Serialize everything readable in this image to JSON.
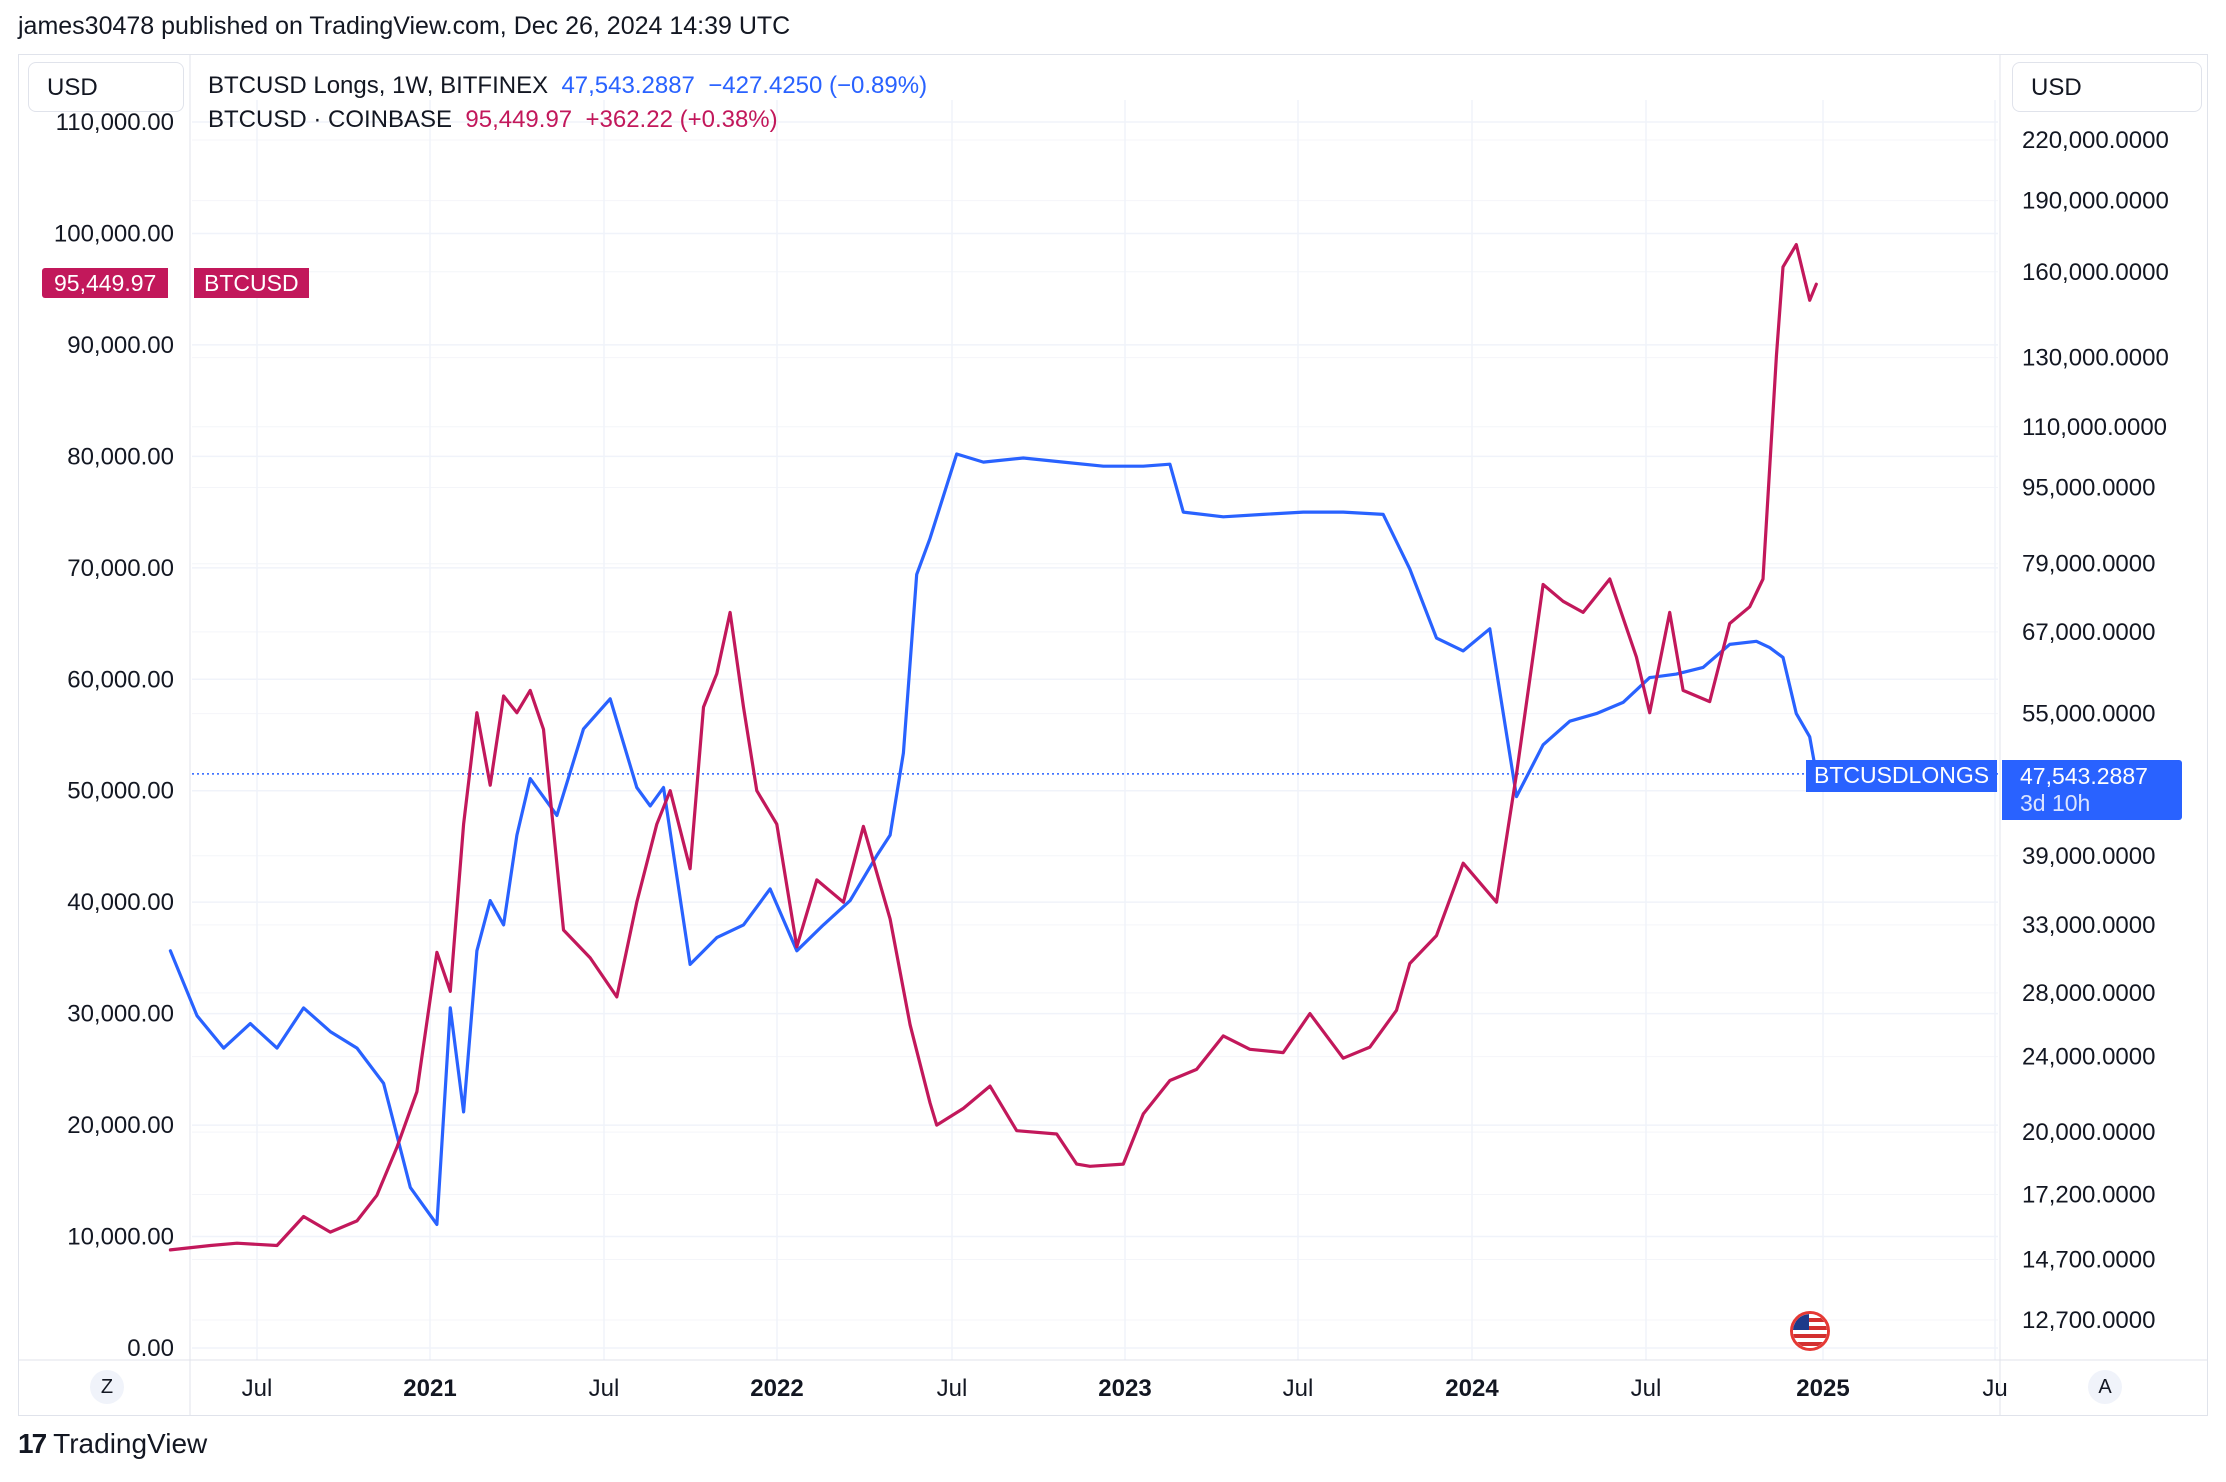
{
  "header": {
    "published_by": "james30478 published on TradingView.com, Dec 26, 2024 14:39 UTC"
  },
  "toolbar": {
    "left_unit": "USD",
    "right_unit": "USD"
  },
  "legend": {
    "series1": {
      "name": "BTCUSD Longs, 1W, BITFINEX",
      "value": "47,543.2887",
      "change": "−427.4250 (−0.89%)"
    },
    "series2": {
      "name": "BTCUSD · COINBASE",
      "value": "95,449.97",
      "change": "+362.22 (+0.38%)"
    }
  },
  "price_tags": {
    "btcusd_value": "95,449.97",
    "btcusd_label": "BTCUSD",
    "longs_label": "BTCUSDLONGS",
    "longs_value": "47,543.2887",
    "longs_countdown": "3d 10h"
  },
  "time_buttons": {
    "left": "Z",
    "right": "A"
  },
  "footer": {
    "brand": "TradingView",
    "logo": "17"
  },
  "colors": {
    "longs": "#2962ff",
    "btcusd": "#c2185b",
    "grid": "#f0f3fa"
  },
  "icons": {
    "flag": "us-flag-icon"
  },
  "chart_data": {
    "type": "line",
    "grid": true,
    "x_axis": {
      "labels": [
        "Jul",
        "2021",
        "Jul",
        "2022",
        "Jul",
        "2023",
        "Jul",
        "2024",
        "Jul",
        "2025",
        "Ju"
      ],
      "bold": [
        false,
        true,
        false,
        true,
        false,
        true,
        false,
        true,
        false,
        true,
        false
      ],
      "tick_dates": [
        "2020-07-01",
        "2021-01-01",
        "2021-07-01",
        "2022-01-01",
        "2022-07-01",
        "2023-01-01",
        "2023-07-01",
        "2024-01-01",
        "2024-07-01",
        "2025-01-01",
        "2025-07-01"
      ]
    },
    "left_axis": {
      "unit": "USD",
      "ticks": [
        "0.00",
        "10,000.00",
        "20,000.00",
        "30,000.00",
        "40,000.00",
        "50,000.00",
        "60,000.00",
        "70,000.00",
        "80,000.00",
        "90,000.00",
        "100,000.00",
        "110,000.00"
      ],
      "range": [
        0,
        110000
      ]
    },
    "right_axis": {
      "unit": "USD",
      "scale": "log",
      "ticks": [
        "12,700.0000",
        "14,700.0000",
        "17,200.0000",
        "20,000.0000",
        "24,000.0000",
        "28,000.0000",
        "33,000.0000",
        "39,000.0000",
        "47,543.2887",
        "55,000.0000",
        "67,000.0000",
        "79,000.0000",
        "95,000.0000",
        "110,000.0000",
        "130,000.0000",
        "160,000.0000",
        "190,000.0000",
        "220,000.0000"
      ],
      "range": [
        12700,
        220000
      ]
    },
    "series": [
      {
        "name": "BTCUSD Longs, 1W, BITFINEX",
        "axis": "right",
        "color": "#2962ff",
        "x": [
          "2020-04-01",
          "2020-04-29",
          "2020-05-27",
          "2020-06-24",
          "2020-07-22",
          "2020-08-19",
          "2020-09-16",
          "2020-10-14",
          "2020-11-11",
          "2020-12-09",
          "2021-01-06",
          "2021-01-20",
          "2021-02-03",
          "2021-02-17",
          "2021-03-03",
          "2021-03-17",
          "2021-03-31",
          "2021-04-14",
          "2021-05-12",
          "2021-06-09",
          "2021-07-07",
          "2021-08-04",
          "2021-08-18",
          "2021-09-01",
          "2021-09-29",
          "2021-10-27",
          "2021-11-24",
          "2021-12-22",
          "2022-01-19",
          "2022-02-16",
          "2022-03-16",
          "2022-04-13",
          "2022-04-27",
          "2022-05-11",
          "2022-05-25",
          "2022-06-08",
          "2022-07-06",
          "2022-08-03",
          "2022-09-14",
          "2022-10-26",
          "2022-12-07",
          "2023-01-18",
          "2023-02-15",
          "2023-03-01",
          "2023-04-12",
          "2023-05-24",
          "2023-07-05",
          "2023-08-16",
          "2023-09-27",
          "2023-10-25",
          "2023-11-22",
          "2023-12-20",
          "2024-01-17",
          "2024-02-14",
          "2024-03-13",
          "2024-04-10",
          "2024-05-08",
          "2024-06-05",
          "2024-07-03",
          "2024-07-31",
          "2024-08-28",
          "2024-09-25",
          "2024-10-23",
          "2024-11-06",
          "2024-11-20",
          "2024-12-04",
          "2024-12-18",
          "2024-12-25"
        ],
        "values": [
          31000,
          26500,
          24500,
          26000,
          24500,
          27000,
          25500,
          24500,
          22500,
          17500,
          16000,
          27000,
          21000,
          31000,
          35000,
          33000,
          41000,
          47000,
          43000,
          53000,
          57000,
          46000,
          44000,
          46000,
          30000,
          32000,
          33000,
          36000,
          31000,
          33000,
          35000,
          39000,
          41000,
          50000,
          77000,
          84000,
          103000,
          101000,
          102000,
          101000,
          100000,
          100000,
          100500,
          89500,
          88500,
          89000,
          89500,
          89500,
          89000,
          78000,
          66000,
          64000,
          67500,
          45000,
          51000,
          54000,
          55000,
          56500,
          60000,
          60500,
          61500,
          65000,
          65500,
          64500,
          63000,
          55000,
          52000,
          47543
        ]
      },
      {
        "name": "BTCUSD · COINBASE",
        "axis": "left",
        "color": "#c2185b",
        "x": [
          "2020-04-01",
          "2020-05-13",
          "2020-06-10",
          "2020-07-22",
          "2020-08-19",
          "2020-09-16",
          "2020-10-14",
          "2020-11-04",
          "2020-11-25",
          "2020-12-16",
          "2021-01-06",
          "2021-01-20",
          "2021-02-03",
          "2021-02-17",
          "2021-03-03",
          "2021-03-17",
          "2021-03-31",
          "2021-04-14",
          "2021-04-28",
          "2021-05-19",
          "2021-06-16",
          "2021-07-14",
          "2021-08-04",
          "2021-08-25",
          "2021-09-08",
          "2021-09-29",
          "2021-10-13",
          "2021-10-27",
          "2021-11-10",
          "2021-11-24",
          "2021-12-08",
          "2021-12-29",
          "2022-01-19",
          "2022-02-09",
          "2022-03-09",
          "2022-03-30",
          "2022-04-27",
          "2022-05-18",
          "2022-06-08",
          "2022-06-15",
          "2022-07-13",
          "2022-08-10",
          "2022-09-07",
          "2022-10-19",
          "2022-11-09",
          "2022-11-23",
          "2022-12-28",
          "2023-01-18",
          "2023-02-15",
          "2023-03-15",
          "2023-04-12",
          "2023-05-10",
          "2023-06-14",
          "2023-07-12",
          "2023-08-16",
          "2023-09-13",
          "2023-10-11",
          "2023-10-25",
          "2023-11-22",
          "2023-12-20",
          "2024-01-24",
          "2024-02-14",
          "2024-03-13",
          "2024-04-03",
          "2024-04-24",
          "2024-05-22",
          "2024-06-19",
          "2024-07-03",
          "2024-07-24",
          "2024-08-07",
          "2024-09-04",
          "2024-09-25",
          "2024-10-16",
          "2024-10-30",
          "2024-11-13",
          "2024-11-20",
          "2024-12-04",
          "2024-12-18",
          "2024-12-25"
        ],
        "values": [
          8800,
          9200,
          9400,
          9200,
          11800,
          10400,
          11400,
          13700,
          18000,
          23000,
          35500,
          32000,
          47000,
          57000,
          50500,
          58500,
          57000,
          59000,
          55500,
          37500,
          35000,
          31500,
          40000,
          47000,
          50000,
          43000,
          57500,
          60500,
          66000,
          57500,
          50000,
          47000,
          36000,
          42000,
          40000,
          46800,
          38500,
          29000,
          22000,
          20000,
          21500,
          23500,
          19500,
          19200,
          16500,
          16300,
          16500,
          21000,
          24000,
          25000,
          28000,
          26800,
          26500,
          30000,
          26000,
          27000,
          30300,
          34500,
          37000,
          43500,
          40000,
          51500,
          68500,
          67000,
          66000,
          69000,
          62000,
          57000,
          66000,
          59000,
          58000,
          65000,
          66500,
          69000,
          89000,
          97000,
          99000,
          94000,
          95450
        ]
      }
    ]
  }
}
